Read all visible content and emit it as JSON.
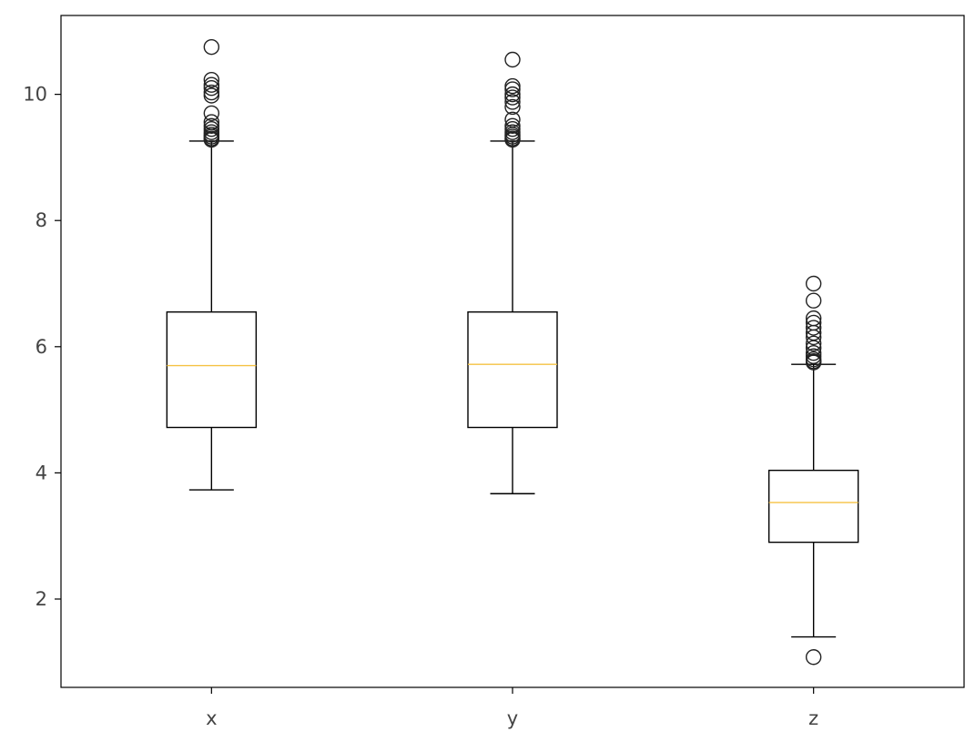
{
  "chart_data": {
    "type": "box",
    "title": "",
    "xlabel": "",
    "ylabel": "",
    "ylim": [
      0.6,
      11.25
    ],
    "yticks": [
      2,
      4,
      6,
      8,
      10
    ],
    "ytick_labels": [
      "2",
      "4",
      "6",
      "8",
      "10"
    ],
    "grid": false,
    "legend": "none",
    "colors": {
      "box": "#000000",
      "median": "#f5c243",
      "flier": "#222222",
      "text": "#444444"
    },
    "categories": [
      "x",
      "y",
      "z"
    ],
    "boxes": [
      {
        "label": "x",
        "whislo": 3.73,
        "q1": 4.72,
        "med": 5.7,
        "q3": 6.55,
        "whishi": 9.26,
        "fliers": [
          10.75,
          10.23,
          10.15,
          10.1,
          10.03,
          9.98,
          9.7,
          9.56,
          9.5,
          9.45,
          9.4,
          9.36,
          9.33,
          9.3,
          9.28
        ]
      },
      {
        "label": "y",
        "whislo": 3.67,
        "q1": 4.72,
        "med": 5.72,
        "q3": 6.55,
        "whishi": 9.26,
        "fliers": [
          10.55,
          10.13,
          10.08,
          10.0,
          9.95,
          9.88,
          9.8,
          9.6,
          9.5,
          9.45,
          9.4,
          9.36,
          9.33,
          9.3,
          9.28
        ]
      },
      {
        "label": "z",
        "whislo": 1.4,
        "q1": 2.9,
        "med": 3.53,
        "q3": 4.04,
        "whishi": 5.72,
        "fliers": [
          7.0,
          6.73,
          6.45,
          6.38,
          6.3,
          6.22,
          6.15,
          6.05,
          5.98,
          5.9,
          5.85,
          5.8,
          5.77,
          5.75,
          1.08
        ]
      }
    ]
  }
}
